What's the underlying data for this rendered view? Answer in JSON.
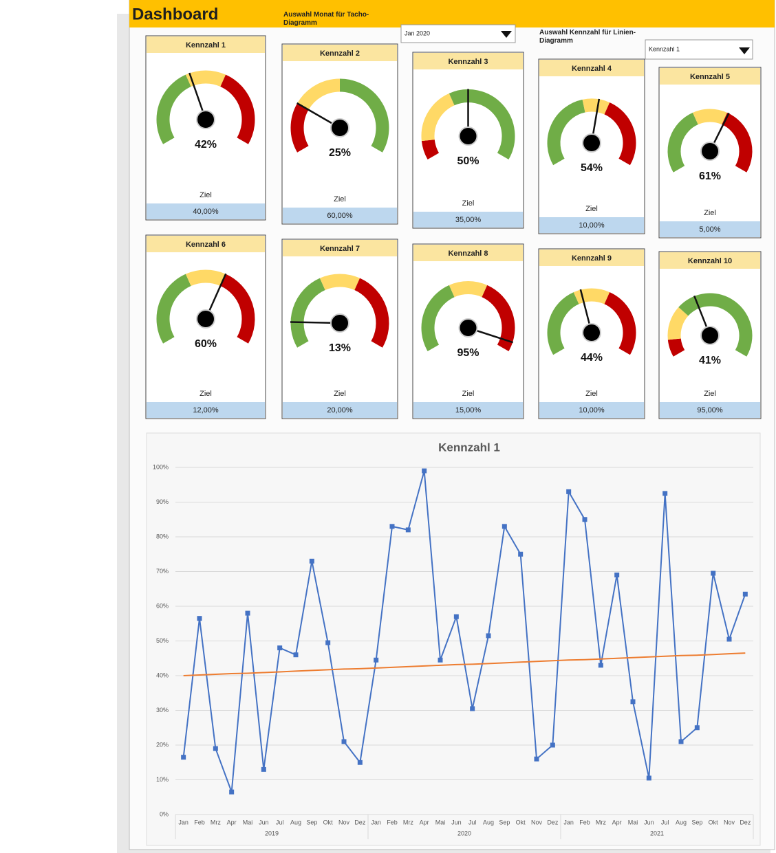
{
  "header": {
    "title": "Dashboard",
    "month_label": "Auswahl Monat für Tacho-Diagramm",
    "month_value": "Jan 2020",
    "kpi_label": "Auswahl Kennzahl für Linien-Diagramm",
    "kpi_value": "Kennzahl 1"
  },
  "gauge_range": [
    0,
    100
  ],
  "gauges": [
    {
      "title": "Kennzahl 1",
      "value": 42,
      "value_label": "42%",
      "target_label": "Ziel",
      "target": "40,00%",
      "zones": [
        {
          "color": "#70ad47",
          "end": 40
        },
        {
          "color": "#ffd966",
          "end": 60
        },
        {
          "color": "#c00000",
          "end": 100
        }
      ]
    },
    {
      "title": "Kennzahl 2",
      "value": 25,
      "value_label": "25%",
      "target_label": "Ziel",
      "target": "60,00%",
      "zones": [
        {
          "color": "#c00000",
          "end": 25
        },
        {
          "color": "#ffd966",
          "end": 50
        },
        {
          "color": "#70ad47",
          "end": 100
        }
      ]
    },
    {
      "title": "Kennzahl 3",
      "value": 50,
      "value_label": "50%",
      "target_label": "Ziel",
      "target": "35,00%",
      "zones": [
        {
          "color": "#c00000",
          "end": 10
        },
        {
          "color": "#ffd966",
          "end": 40
        },
        {
          "color": "#70ad47",
          "end": 100
        }
      ]
    },
    {
      "title": "Kennzahl 4",
      "value": 54,
      "value_label": "54%",
      "target_label": "Ziel",
      "target": "10,00%",
      "zones": [
        {
          "color": "#70ad47",
          "end": 45
        },
        {
          "color": "#ffd966",
          "end": 60
        },
        {
          "color": "#c00000",
          "end": 100
        }
      ]
    },
    {
      "title": "Kennzahl 5",
      "value": 61,
      "value_label": "61%",
      "target_label": "Ziel",
      "target": "5,00%",
      "zones": [
        {
          "color": "#70ad47",
          "end": 40
        },
        {
          "color": "#ffd966",
          "end": 60
        },
        {
          "color": "#c00000",
          "end": 100
        }
      ]
    },
    {
      "title": "Kennzahl 6",
      "value": 60,
      "value_label": "60%",
      "target_label": "Ziel",
      "target": "12,00%",
      "zones": [
        {
          "color": "#70ad47",
          "end": 40
        },
        {
          "color": "#ffd966",
          "end": 60
        },
        {
          "color": "#c00000",
          "end": 100
        }
      ]
    },
    {
      "title": "Kennzahl 7",
      "value": 13,
      "value_label": "13%",
      "target_label": "Ziel",
      "target": "20,00%",
      "zones": [
        {
          "color": "#70ad47",
          "end": 40
        },
        {
          "color": "#ffd966",
          "end": 60
        },
        {
          "color": "#c00000",
          "end": 100
        }
      ]
    },
    {
      "title": "Kennzahl 8",
      "value": 95,
      "value_label": "95%",
      "target_label": "Ziel",
      "target": "15,00%",
      "zones": [
        {
          "color": "#70ad47",
          "end": 40
        },
        {
          "color": "#ffd966",
          "end": 60
        },
        {
          "color": "#c00000",
          "end": 100
        }
      ]
    },
    {
      "title": "Kennzahl 9",
      "value": 44,
      "value_label": "44%",
      "target_label": "Ziel",
      "target": "10,00%",
      "zones": [
        {
          "color": "#70ad47",
          "end": 40
        },
        {
          "color": "#ffd966",
          "end": 60
        },
        {
          "color": "#c00000",
          "end": 100
        }
      ]
    },
    {
      "title": "Kennzahl 10",
      "value": 41,
      "value_label": "41%",
      "target_label": "Ziel",
      "target": "95,00%",
      "zones": [
        {
          "color": "#c00000",
          "end": 10
        },
        {
          "color": "#ffd966",
          "end": 30
        },
        {
          "color": "#70ad47",
          "end": 100
        }
      ]
    }
  ],
  "chart_data": {
    "type": "line",
    "title": "Kennzahl 1",
    "categories": [
      "Jan",
      "Feb",
      "Mrz",
      "Apr",
      "Mai",
      "Jun",
      "Jul",
      "Aug",
      "Sep",
      "Okt",
      "Nov",
      "Dez",
      "Jan",
      "Feb",
      "Mrz",
      "Apr",
      "Mai",
      "Jun",
      "Jul",
      "Aug",
      "Sep",
      "Okt",
      "Nov",
      "Dez",
      "Jan",
      "Feb",
      "Mrz",
      "Apr",
      "Mai",
      "Jun",
      "Jul",
      "Aug",
      "Sep",
      "Okt",
      "Nov",
      "Dez"
    ],
    "groups": [
      "2019",
      "2020",
      "2021"
    ],
    "series": [
      {
        "color": "#4472c4",
        "markers": true,
        "values": [
          16.5,
          56.5,
          19,
          6.5,
          58,
          13,
          48,
          46,
          73,
          49.5,
          21,
          15,
          44.5,
          83,
          82,
          99,
          44.5,
          57,
          30.5,
          51.5,
          83,
          75,
          16,
          20,
          93,
          85,
          43,
          69,
          32.5,
          10.5,
          92.5,
          21,
          25,
          69.5,
          50.5,
          63.5
        ]
      },
      {
        "color": "#ed7d31",
        "markers": false,
        "values": [
          40.0,
          40.2,
          40.4,
          40.6,
          40.7,
          40.9,
          41.1,
          41.3,
          41.5,
          41.7,
          41.9,
          42.0,
          42.2,
          42.4,
          42.6,
          42.8,
          43.0,
          43.2,
          43.3,
          43.5,
          43.7,
          43.9,
          44.1,
          44.3,
          44.5,
          44.6,
          44.8,
          45.0,
          45.2,
          45.4,
          45.6,
          45.8,
          45.9,
          46.1,
          46.3,
          46.5
        ]
      }
    ],
    "ylim": [
      0,
      100
    ],
    "yticks": [
      {
        "value": 0,
        "label": "0%"
      },
      {
        "value": 10,
        "label": "10%"
      },
      {
        "value": 20,
        "label": "20%"
      },
      {
        "value": 30,
        "label": "30%"
      },
      {
        "value": 40,
        "label": "40%"
      },
      {
        "value": 50,
        "label": "50%"
      },
      {
        "value": 60,
        "label": "60%"
      },
      {
        "value": 70,
        "label": "70%"
      },
      {
        "value": 80,
        "label": "80%"
      },
      {
        "value": 90,
        "label": "90%"
      },
      {
        "value": 100,
        "label": "100%"
      }
    ],
    "grid": true
  }
}
